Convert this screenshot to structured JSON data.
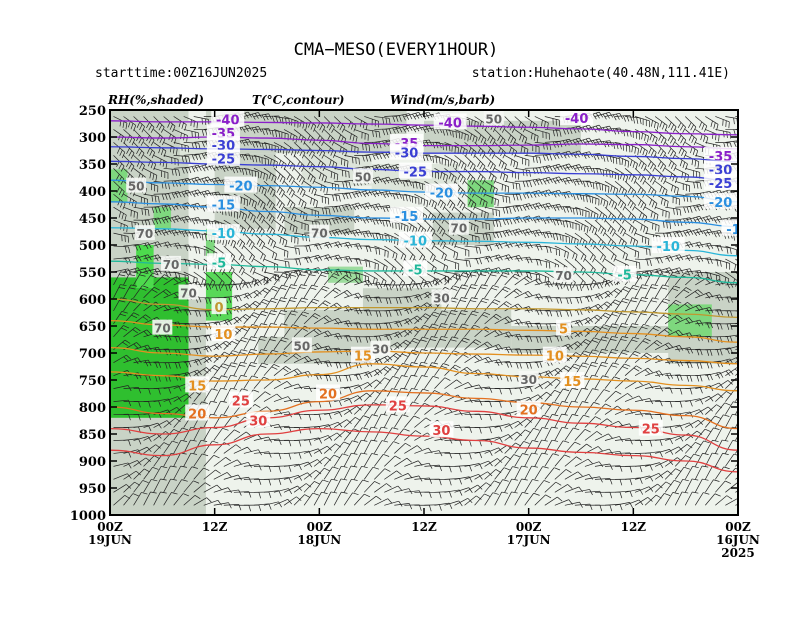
{
  "chart_data": {
    "type": "area",
    "title": "CMA−MESO(EVERY1HOUR)",
    "starttime": "starttime:00Z16JUN2025",
    "station": "station:Huhehaote(40.48N,111.41E)",
    "headers": [
      "RH(%,shaded)",
      "T(°C,contour)",
      "Wind(m/s,barb)"
    ],
    "y_axis": {
      "reversed": true,
      "ylim": [
        250,
        1000
      ],
      "ticks": [
        250,
        300,
        350,
        400,
        450,
        500,
        550,
        600,
        650,
        700,
        750,
        800,
        850,
        900,
        950,
        1000
      ]
    },
    "x_axis": {
      "ticks": [
        {
          "h": 0,
          "lines": [
            "00Z",
            "19JUN"
          ]
        },
        {
          "h": 12,
          "lines": [
            "12Z"
          ]
        },
        {
          "h": 24,
          "lines": [
            "00Z",
            "18JUN"
          ]
        },
        {
          "h": 36,
          "lines": [
            "12Z"
          ]
        },
        {
          "h": 48,
          "lines": [
            "00Z",
            "17JUN"
          ]
        },
        {
          "h": 60,
          "lines": [
            "12Z"
          ]
        },
        {
          "h": 72,
          "lines": [
            "00Z",
            "16JUN",
            "2025"
          ]
        }
      ]
    },
    "rh_labels": [
      {
        "v": "50",
        "h": 3,
        "p": 390
      },
      {
        "v": "70",
        "h": 4,
        "p": 478
      },
      {
        "v": "70",
        "h": 7,
        "p": 535
      },
      {
        "v": "70",
        "h": 9,
        "p": 588
      },
      {
        "v": "70",
        "h": 6,
        "p": 653
      },
      {
        "v": "70",
        "h": 24,
        "p": 477
      },
      {
        "v": "50",
        "h": 29,
        "p": 373
      },
      {
        "v": "50",
        "h": 22,
        "p": 686
      },
      {
        "v": "30",
        "h": 31,
        "p": 692
      },
      {
        "v": "70",
        "h": 40,
        "p": 468
      },
      {
        "v": "30",
        "h": 38,
        "p": 597
      },
      {
        "v": "50",
        "h": 44,
        "p": 266
      },
      {
        "v": "70",
        "h": 52,
        "p": 556
      },
      {
        "v": "30",
        "h": 48,
        "p": 748
      }
    ],
    "temperature_contours": [
      {
        "label": "-40",
        "color": "#8a1fc9",
        "p": [
          270,
          272,
          272,
          273,
          274,
          276,
          278,
          280,
          282,
          285,
          290,
          294,
          296
        ],
        "labels": [
          {
            "h": 13.5,
            "p": 268
          },
          {
            "h": 39,
            "p": 273
          },
          {
            "h": 53.5,
            "p": 265
          }
        ]
      },
      {
        "label": "-35",
        "color": "#8a1fc9",
        "p": [
          300,
          302,
          300,
          302,
          306,
          312,
          316,
          316,
          315,
          313,
          314,
          318,
          322
        ],
        "labels": [
          {
            "h": 13,
            "p": 293
          },
          {
            "h": 34,
            "p": 311
          },
          {
            "h": 70,
            "p": 335
          }
        ]
      },
      {
        "label": "-30",
        "color": "#3a3fd4",
        "p": [
          318,
          320,
          322,
          323,
          325,
          328,
          330,
          330,
          330,
          332,
          336,
          340,
          346
        ],
        "labels": [
          {
            "h": 13,
            "p": 315
          },
          {
            "h": 34,
            "p": 329
          },
          {
            "h": 70,
            "p": 360
          }
        ]
      },
      {
        "label": "-25",
        "color": "#3a3fd4",
        "p": [
          345,
          347,
          350,
          352,
          355,
          360,
          364,
          364,
          366,
          368,
          370,
          374,
          382
        ],
        "labels": [
          {
            "h": 13,
            "p": 340
          },
          {
            "h": 35,
            "p": 364
          },
          {
            "h": 70,
            "p": 385
          }
        ]
      },
      {
        "label": "-20",
        "color": "#2a8fe0",
        "p": [
          380,
          385,
          388,
          390,
          393,
          398,
          402,
          404,
          404,
          405,
          406,
          410,
          420
        ],
        "labels": [
          {
            "h": 15,
            "p": 390
          },
          {
            "h": 38,
            "p": 403
          },
          {
            "h": 70,
            "p": 420
          }
        ]
      },
      {
        "label": "-15",
        "color": "#2a8fe0",
        "p": [
          420,
          424,
          430,
          438,
          445,
          450,
          452,
          452,
          450,
          450,
          452,
          458,
          466
        ],
        "labels": [
          {
            "h": 13,
            "p": 425
          },
          {
            "h": 34,
            "p": 446
          },
          {
            "h": 72,
            "p": 470
          }
        ]
      },
      {
        "label": "-10",
        "color": "#2ab5d8",
        "p": [
          468,
          470,
          474,
          480,
          486,
          490,
          492,
          493,
          495,
          498,
          502,
          510,
          520
        ],
        "labels": [
          {
            "h": 13,
            "p": 478
          },
          {
            "h": 35,
            "p": 492
          },
          {
            "h": 64,
            "p": 502
          }
        ]
      },
      {
        "label": "-5",
        "color": "#1fb89a",
        "p": [
          530,
          534,
          536,
          540,
          546,
          548,
          548,
          548,
          548,
          550,
          555,
          560,
          570
        ],
        "labels": [
          {
            "h": 12.5,
            "p": 532
          },
          {
            "h": 35,
            "p": 545
          },
          {
            "h": 59,
            "p": 555
          }
        ]
      },
      {
        "label": "0",
        "color": "#c09830",
        "p": [
          600,
          610,
          620,
          618,
          616,
          616,
          616,
          618,
          618,
          620,
          624,
          628,
          634
        ],
        "labels": [
          {
            "h": 12.5,
            "p": 615
          }
        ]
      },
      {
        "label": "5",
        "color": "#e39020",
        "p": [
          640,
          648,
          652,
          652,
          654,
          656,
          656,
          656,
          658,
          660,
          664,
          670,
          680
        ],
        "labels": [
          {
            "h": 52,
            "p": 655
          }
        ]
      },
      {
        "label": "10",
        "color": "#e39020",
        "p": [
          690,
          700,
          706,
          702,
          698,
          696,
          700,
          702,
          704,
          706,
          710,
          714,
          720
        ],
        "labels": [
          {
            "h": 13,
            "p": 665
          },
          {
            "h": 51,
            "p": 705
          }
        ]
      },
      {
        "label": "15",
        "color": "#e39020",
        "p": [
          735,
          742,
          752,
          750,
          740,
          720,
          726,
          738,
          744,
          748,
          752,
          760,
          770
        ],
        "labels": [
          {
            "h": 10,
            "p": 760
          },
          {
            "h": 29,
            "p": 705
          },
          {
            "h": 53,
            "p": 752
          }
        ]
      },
      {
        "label": "20",
        "color": "#e37020",
        "p": [
          800,
          812,
          820,
          808,
          790,
          770,
          774,
          784,
          792,
          800,
          806,
          816,
          840
        ],
        "labels": [
          {
            "h": 10,
            "p": 812
          },
          {
            "h": 25,
            "p": 775
          },
          {
            "h": 48,
            "p": 805
          }
        ]
      },
      {
        "label": "25",
        "color": "#e04040",
        "p": [
          840,
          850,
          838,
          820,
          806,
          796,
          798,
          808,
          820,
          830,
          838,
          852,
          880
        ],
        "labels": [
          {
            "h": 15,
            "p": 788
          },
          {
            "h": 33,
            "p": 797
          },
          {
            "h": 62,
            "p": 840
          }
        ]
      },
      {
        "label": "30",
        "color": "#e04040",
        "p": [
          880,
          890,
          870,
          850,
          840,
          846,
          854,
          862,
          876,
          884,
          890,
          900,
          920
        ],
        "labels": [
          {
            "h": 17,
            "p": 825
          },
          {
            "h": 38,
            "p": 843
          }
        ]
      }
    ]
  }
}
